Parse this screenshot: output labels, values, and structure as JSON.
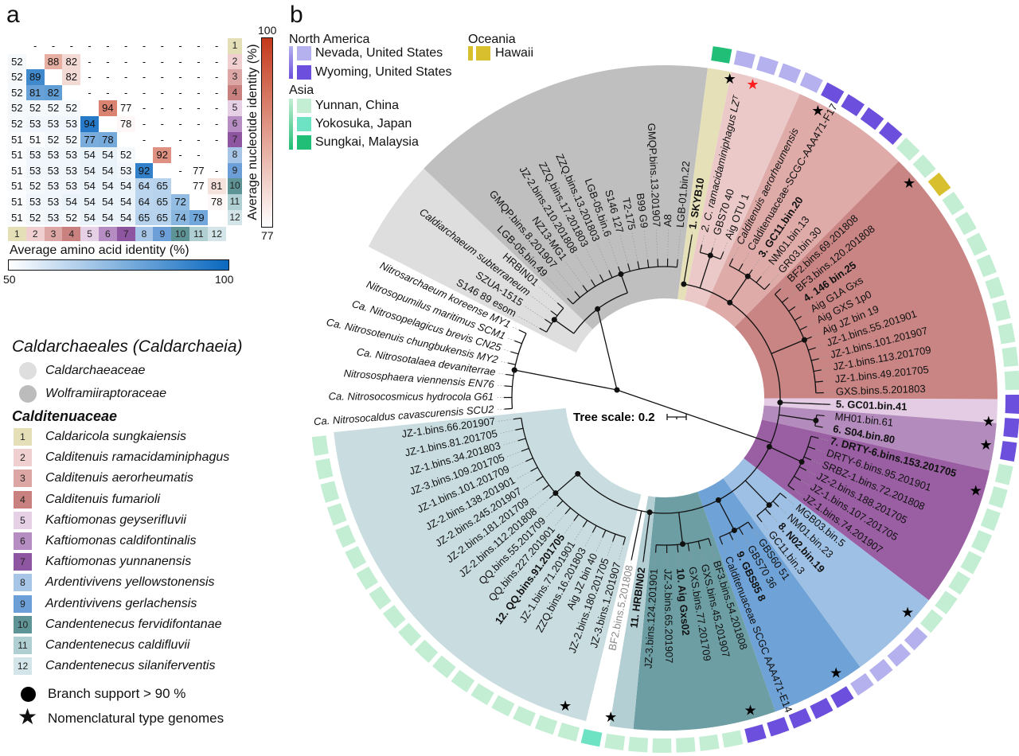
{
  "panel_labels": {
    "a": "a",
    "b": "b"
  },
  "heatmap": {
    "clade_numbers": [
      "1",
      "2",
      "3",
      "4",
      "5",
      "6",
      "7",
      "8",
      "9",
      "10",
      "11",
      "12"
    ],
    "matrix": [
      [
        "",
        "-",
        "-",
        "-",
        "-",
        "-",
        "-",
        "-",
        "-",
        "-",
        "-",
        "-"
      ],
      [
        "52",
        "",
        "88",
        "82",
        "-",
        "-",
        "-",
        "-",
        "-",
        "-",
        "-",
        "-"
      ],
      [
        "52",
        "89",
        "",
        "82",
        "-",
        "-",
        "-",
        "-",
        "-",
        "-",
        "-",
        "-"
      ],
      [
        "52",
        "81",
        "82",
        "",
        "-",
        "-",
        "-",
        "-",
        "-",
        "-",
        "-",
        "-"
      ],
      [
        "52",
        "52",
        "52",
        "52",
        "",
        "94",
        "77",
        "-",
        "-",
        "-",
        "-",
        "-"
      ],
      [
        "52",
        "53",
        "53",
        "53",
        "94",
        "",
        "78",
        "-",
        "-",
        "-",
        "-",
        "-"
      ],
      [
        "51",
        "51",
        "52",
        "52",
        "77",
        "78",
        "",
        "-",
        "-",
        "-",
        "-",
        "-"
      ],
      [
        "51",
        "53",
        "53",
        "53",
        "54",
        "54",
        "52",
        "",
        "92",
        "-",
        "-",
        ""
      ],
      [
        "51",
        "53",
        "53",
        "53",
        "54",
        "54",
        "53",
        "92",
        "",
        "-",
        "77",
        "-"
      ],
      [
        "51",
        "52",
        "53",
        "53",
        "54",
        "54",
        "54",
        "64",
        "65",
        "",
        "77",
        "81"
      ],
      [
        "51",
        "53",
        "53",
        "54",
        "54",
        "54",
        "54",
        "64",
        "65",
        "72",
        "",
        "78"
      ],
      [
        "51",
        "52",
        "53",
        "52",
        "54",
        "54",
        "54",
        "65",
        "65",
        "74",
        "79",
        ""
      ]
    ],
    "aai_label": "Average amino acid identity (%)",
    "aai_min": "50",
    "aai_max": "100",
    "aai_color": "#0a68bf",
    "ani_label": "Average nucleotide identity (%)",
    "ani_min": "77",
    "ani_max": "100",
    "ani_color": "#c4391b"
  },
  "clade_colors": [
    "#e4dfb6",
    "#efcfcf",
    "#dca6a5",
    "#c9817f",
    "#e6d0e6",
    "#b68dc2",
    "#8e55a1",
    "#a6c5e7",
    "#6c9fd8",
    "#5f9497",
    "#afcfd3",
    "#d3e5e8"
  ],
  "geo_legend": {
    "continents": [
      {
        "name": "North America",
        "items": [
          {
            "name": "Nevada, United States",
            "color": "#b4b1ee"
          },
          {
            "name": "Wyoming, United States",
            "color": "#6d4fdd"
          }
        ]
      },
      {
        "name": "Asia",
        "items": [
          {
            "name": "Yunnan, China",
            "color": "#c3eed3"
          },
          {
            "name": "Yokosuka, Japan",
            "color": "#6ee3c3"
          },
          {
            "name": "Sungkai, Malaysia",
            "color": "#21be77"
          }
        ]
      },
      {
        "name": "Oceania",
        "items": [
          {
            "name": "Hawaii",
            "color": "#d7bf2e"
          }
        ]
      }
    ]
  },
  "taxonomy_legend": {
    "order_title": "Caldarchaeales",
    "class_title": "(Caldarchaeia)",
    "families": [
      {
        "name": "Caldarchaeaceae",
        "color": "#dedede"
      },
      {
        "name": "Wolframiiraptoraceae",
        "color": "#bcbcbc"
      }
    ],
    "calditenuaceae_title": "Calditenuaceae",
    "species": [
      "Caldaricola sungkaiensis",
      "Calditenuis ramacidaminiphagus",
      "Calditenuis aerorheumatis",
      "Calditenuis fumarioli",
      "Kaftiomonas geyserifluvii",
      "Kaftiomonas caldifontinalis",
      "Kaftiomonas yunnanensis",
      "Ardentivivens yellowstonensis",
      "Ardentivivens gerlachensis",
      "Candentenecus fervidifontanae",
      "Candentenecus caldifluvii",
      "Candentenecus silaniferventis"
    ],
    "branch_support": "Branch support > 90 %",
    "type_genomes": "Nomenclatural type genomes",
    "highlight_star_color": "#ff1e1e"
  },
  "tree": {
    "scale_label": "Tree scale: 0.2",
    "groups": [
      {
        "id": "outgroup",
        "leaves": [
          {
            "t": "Ca. Nitrosocaldus cavascurensis SCU2",
            "s": "italic"
          },
          {
            "t": "Ca. Nitrosocosmicus hydrocola G61",
            "s": "italic"
          },
          {
            "t": "Nitrososphaera viennensis EN76",
            "s": "italic"
          },
          {
            "t": "Ca. Nitrosotalaea devaniterrae",
            "s": "italic"
          },
          {
            "t": "Ca. Nitrosotenuis chungbukensis MY2",
            "s": "italic"
          },
          {
            "t": "Ca. Nitrosopelagicus brevis CN25",
            "s": "italic"
          },
          {
            "t": "Nitrosopumilus maritimus SCM1",
            "s": "italic"
          },
          {
            "t": "Nitrosarchaeum koreense MY1",
            "s": "italic"
          }
        ]
      },
      {
        "id": "caldarchaeaceae",
        "color": "#dedede",
        "leaves": [
          {
            "t": "S146 89 esom"
          },
          {
            "t": "SZUA-1515"
          },
          {
            "t": "Caldiarchaeum subterraneum",
            "s": "italic"
          },
          {
            "t": "HRBIN01"
          }
        ]
      },
      {
        "id": "wolframiiraptoraceae",
        "color": "#bfbfbf",
        "leaves": [
          {
            "t": "LGB-05.bin.49"
          },
          {
            "t": "GMQP.bins.8.201907"
          },
          {
            "t": "NZ13-MG1"
          },
          {
            "t": "JZ-2.bins.210.201808"
          },
          {
            "t": "ZZQ.bins.17.201803"
          },
          {
            "t": "ZZQ.bins.13.201803"
          },
          {
            "t": "LGB-05.bin.6"
          },
          {
            "t": "S146 127"
          },
          {
            "t": "T2-175"
          },
          {
            "t": "B99 G9"
          },
          {
            "t": "GMQP.bins.13.201907"
          },
          {
            "t": "A8"
          },
          {
            "t": "LGB-01.bin.22"
          }
        ]
      },
      {
        "id": "clade-1",
        "clade": 1,
        "leaves": [
          {
            "t": "1. SKYB10",
            "s": "bold"
          }
        ]
      },
      {
        "id": "clade-2",
        "clade": 2,
        "leaves": [
          {
            "t": "2. C. ramacidaminiphagus LZᵀ",
            "s": "italic"
          },
          {
            "t": "GBS70 40"
          },
          {
            "t": "Aig OTU 1"
          }
        ]
      },
      {
        "id": "clade-3",
        "clade": 3,
        "leaves": [
          {
            "t": "Calditenuis aerorheumensis",
            "s": "italic"
          },
          {
            "t": "Calditenuaceae-SCGC-AAA471-F17"
          },
          {
            "t": "3. GC11.bin.20",
            "s": "bold"
          },
          {
            "t": "NM01.bin.13"
          },
          {
            "t": "GR03.bin.30"
          }
        ]
      },
      {
        "id": "clade-4",
        "clade": 4,
        "leaves": [
          {
            "t": "BF2.bins.69.201808"
          },
          {
            "t": "BF3.bins.120.201808"
          },
          {
            "t": "4. 146 bin.25",
            "s": "bold"
          },
          {
            "t": "Aig G1A Gxs"
          },
          {
            "t": "Aig GXS 1p0"
          },
          {
            "t": "Aig JZ bin 19"
          },
          {
            "t": "JZ-1.bins.55.201901"
          },
          {
            "t": "JZ-1.bins.101.201907"
          },
          {
            "t": "JZ-1.bins.113.201709"
          },
          {
            "t": "JZ-1.bins.49.201705"
          },
          {
            "t": "GXS.bins.5.201803"
          }
        ]
      },
      {
        "id": "clade-5",
        "clade": 5,
        "leaves": [
          {
            "t": "5. GC01.bin.41",
            "s": "bold"
          }
        ]
      },
      {
        "id": "clade-6",
        "clade": 6,
        "leaves": [
          {
            "t": "MH01.bin.61"
          },
          {
            "t": "6. S04.bin.80",
            "s": "bold"
          }
        ]
      },
      {
        "id": "clade-7",
        "clade": 7,
        "leaves": [
          {
            "t": "7. DRTY-6.bins.153.201705",
            "s": "bold"
          },
          {
            "t": "DRTY-6.bins.95.201901"
          },
          {
            "t": "SRBZ-1.bins.72.201808"
          },
          {
            "t": "JZ-2.bins.188.201705"
          },
          {
            "t": "JZ-1.bins.107.201705"
          },
          {
            "t": "JZ-1.bins.74.201907"
          }
        ]
      },
      {
        "id": "clade-8",
        "clade": 8,
        "leaves": [
          {
            "t": "MGB03.bin.5"
          },
          {
            "t": "NM01.bin.23"
          },
          {
            "t": "8. N02.bin.19",
            "s": "bold"
          },
          {
            "t": "GC11.bin.3"
          }
        ]
      },
      {
        "id": "clade-9",
        "clade": 9,
        "leaves": [
          {
            "t": "GBS60 51"
          },
          {
            "t": "GBS70 36"
          },
          {
            "t": "9. GBS85 8",
            "s": "bold"
          },
          {
            "t": "Calditenuaceae SCGC AAA471-E14"
          }
        ]
      },
      {
        "id": "clade-10",
        "clade": 10,
        "leaves": [
          {
            "t": "BF3.bins.54.201808"
          },
          {
            "t": "GXS.bins.45.201907"
          },
          {
            "t": "GXS.bins.77.201709"
          },
          {
            "t": "10. Aig Gxs02",
            "s": "bold"
          },
          {
            "t": "JZ-3.bins.65.201907"
          },
          {
            "t": "JZ-3.bins.124.201901"
          }
        ]
      },
      {
        "id": "clade-11",
        "clade": 11,
        "leaves": [
          {
            "t": "11. HRBIN02",
            "s": "bold"
          }
        ]
      },
      {
        "id": "unassigned",
        "leaves": [
          {
            "t": "BF2.bins.5.201808",
            "s": "gray"
          }
        ]
      },
      {
        "id": "clade-12",
        "clade": 12,
        "leaves": [
          {
            "t": "JZ-3.bins.1.201907"
          },
          {
            "t": "JZ-2.bins.180.201705"
          },
          {
            "t": "Aig JZ bin 40"
          },
          {
            "t": "ZZQ.bins.16.201803"
          },
          {
            "t": "JZ-1.bins.71.201901"
          },
          {
            "t": "12. QQ.bins.91.201705",
            "s": "bold"
          },
          {
            "t": "QQ.bins.227.201901"
          },
          {
            "t": "QQ.bins.55.201709"
          },
          {
            "t": "JZ-2.bins.112.201808"
          },
          {
            "t": "JZ-2.bins.181.201709"
          },
          {
            "t": "JZ-2.bins.245.201907"
          },
          {
            "t": "JZ-2.bins.138.201901"
          },
          {
            "t": "JZ-1.bins.101.201709"
          },
          {
            "t": "JZ-3.bins.109.201705"
          },
          {
            "t": "JZ-1.bins.34.201803"
          },
          {
            "t": "JZ-1.bins.81.201705"
          },
          {
            "t": "JZ-1.bins.66.201907"
          }
        ]
      }
    ],
    "sector_colors": {
      "1": "#e6e0b9",
      "2": "#ebc9c9",
      "3": "#dfaba9",
      "4": "#c98584",
      "5": "#e4cce4",
      "6": "#b48bbd",
      "7": "#9a5ea3",
      "8": "#9ec0e4",
      "9": "#6fa3d7",
      "10": "#6c9ea4",
      "11": "#b3cfd4",
      "12": "#c9dde1"
    },
    "origin_ring": [
      {
        "region": "Sungkai, Malaysia",
        "count": 1
      },
      {
        "region": "Nevada, United States",
        "count": 4
      },
      {
        "region": "Wyoming, United States",
        "count": 4
      },
      {
        "region": "Yunnan, China",
        "count": 2
      },
      {
        "region": "Hawaii",
        "count": 1
      },
      {
        "region": "Yunnan, China",
        "count": 9
      },
      {
        "region": "Wyoming, United States",
        "count": 3
      },
      {
        "region": "Yunnan, China",
        "count": 8
      },
      {
        "region": "Nevada, United States",
        "count": 4
      },
      {
        "region": "Wyoming, United States",
        "count": 5
      },
      {
        "region": "Yunnan, China",
        "count": 6
      },
      {
        "region": "Yokosuka, Japan",
        "count": 1
      },
      {
        "region": "Yunnan, China",
        "count": 18
      }
    ],
    "type_genome_clades": [
      1,
      2,
      3,
      4,
      5,
      6,
      7,
      8,
      9,
      10,
      11,
      12
    ],
    "highlighted_type_clade": 2
  }
}
